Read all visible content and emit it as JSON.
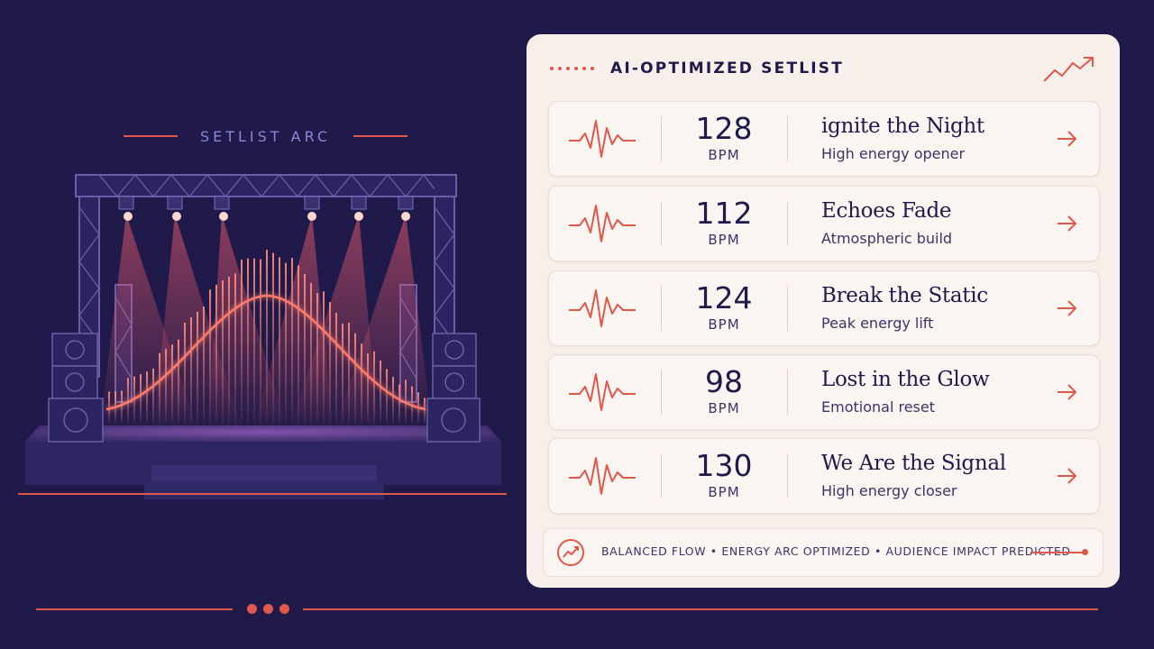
{
  "left": {
    "section_title": "SETLIST ARC"
  },
  "colors": {
    "background": "#1f1a4a",
    "accent": "#e0574b",
    "panel": "#f7efea",
    "text_dark": "#1f1a4a",
    "purple_text": "#8e86d6"
  },
  "panel": {
    "title": "AI-OPTIMIZED SETLIST",
    "trend_icon": "trend-up-icon",
    "songs": [
      {
        "bpm": "128",
        "bpm_unit": "BPM",
        "name": "ignite the Night",
        "description": "High energy opener"
      },
      {
        "bpm": "112",
        "bpm_unit": "BPM",
        "name": "Echoes Fade",
        "description": "Atmospheric build"
      },
      {
        "bpm": "124",
        "bpm_unit": "BPM",
        "name": "Break the Static",
        "description": "Peak energy lift"
      },
      {
        "bpm": "98",
        "bpm_unit": "BPM",
        "name": "Lost in the Glow",
        "description": "Emotional reset"
      },
      {
        "bpm": "130",
        "bpm_unit": "BPM",
        "name": "We Are the Signal",
        "description": "High energy closer"
      }
    ],
    "footer_text": "BALANCED FLOW • ENERGY ARC OPTIMIZED • AUDIENCE IMPACT PREDICTED"
  }
}
